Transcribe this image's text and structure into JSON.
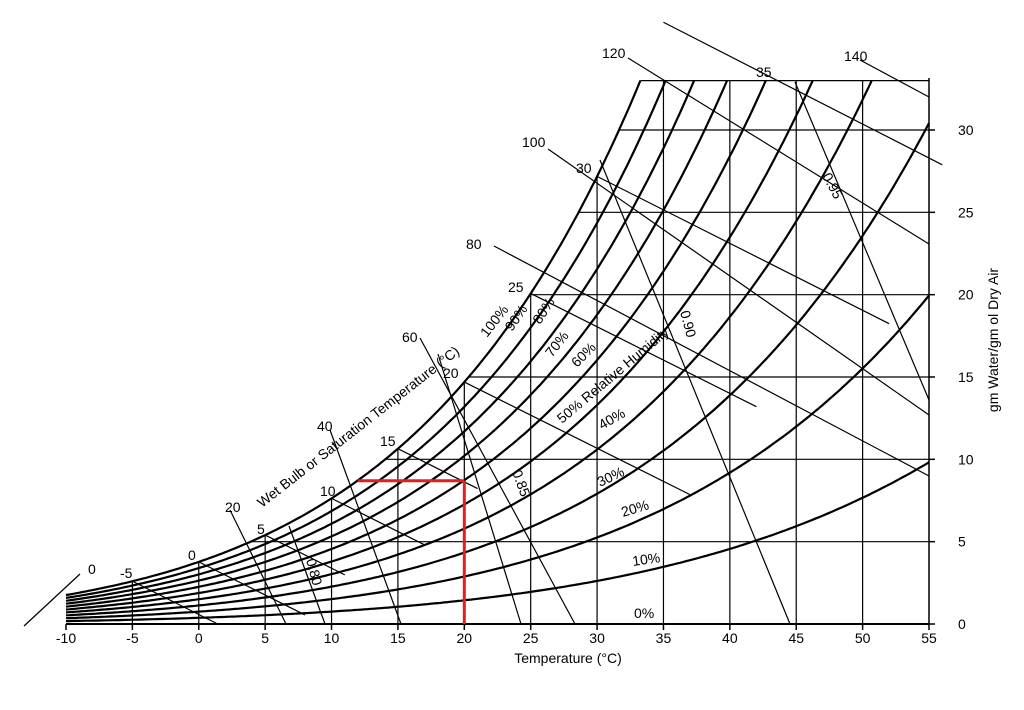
{
  "chart_data": {
    "type": "psychrometric",
    "xlabel": "Temperature (°C)",
    "ylabel": "gm Water/gm ol Dry Air",
    "xlim": [
      -10,
      55
    ],
    "ylim": [
      0,
      33
    ],
    "x_ticks": [
      "-10",
      "-5",
      "0",
      "5",
      "10",
      "15",
      "20",
      "25",
      "30",
      "35",
      "40",
      "45",
      "50",
      "55"
    ],
    "y_ticks": [
      "0",
      "5",
      "10",
      "15",
      "20",
      "25",
      "30"
    ],
    "rh_curves": [
      {
        "label": "100%",
        "rh": 1.0
      },
      {
        "label": "90%",
        "rh": 0.9
      },
      {
        "label": "80%",
        "rh": 0.8
      },
      {
        "label": "70%",
        "rh": 0.7
      },
      {
        "label": "60%",
        "rh": 0.6
      },
      {
        "label": "50% Relative Humidity",
        "rh": 0.5
      },
      {
        "label": "40%",
        "rh": 0.4
      },
      {
        "label": "30%",
        "rh": 0.3
      },
      {
        "label": "20%",
        "rh": 0.2
      },
      {
        "label": "10%",
        "rh": 0.1
      },
      {
        "label": "0%",
        "rh": 0.0
      }
    ],
    "wet_bulb_axis_label": "Wet Bulb or Saturation Temperature (°C)",
    "wet_bulb_labels": [
      "-5",
      "0",
      "5",
      "10",
      "15",
      "20",
      "25",
      "30",
      "35"
    ],
    "enthalpy_labels": [
      "0",
      "20",
      "40",
      "60",
      "80",
      "100",
      "120",
      "140"
    ],
    "specific_volume_labels": [
      "0.80",
      "0.85",
      "0.90",
      "0.95"
    ],
    "highlight": {
      "color": "#e02020",
      "dry_bulb": 20,
      "humidity": 8.7,
      "dew_point": 12
    },
    "line_color": "#000000"
  }
}
